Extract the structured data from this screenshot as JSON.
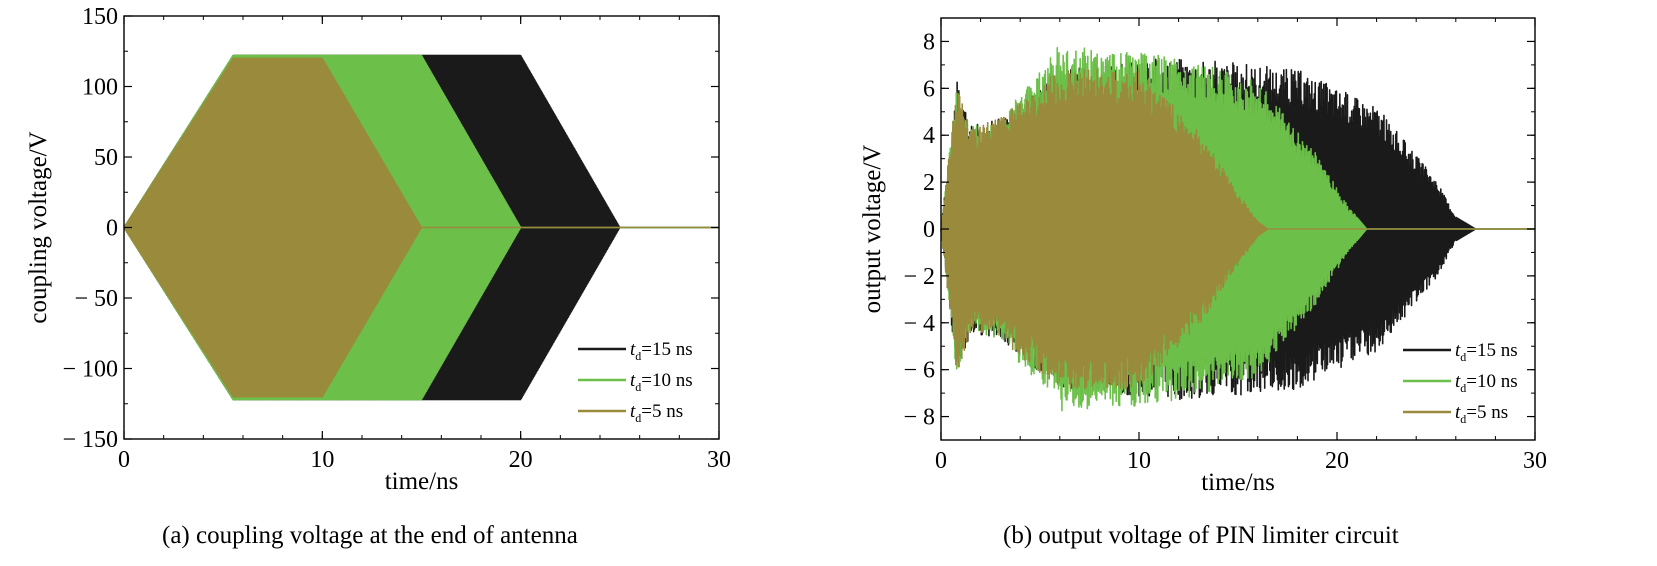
{
  "chart_data": [
    {
      "type": "area",
      "caption": "(a) coupling voltage at the end of antenna",
      "xlabel": "time/ns",
      "ylabel": "coupling voltage/V",
      "xlim": [
        0,
        30
      ],
      "ylim": [
        -150,
        150
      ],
      "xticks": [
        0,
        10,
        20,
        30
      ],
      "yticks": [
        150,
        100,
        50,
        0,
        -50,
        -100,
        -150
      ],
      "ytick_labels": [
        "150",
        "100",
        "50",
        "0",
        "− 50",
        "− 100",
        "− 150"
      ],
      "legend_position": "bottom-right",
      "series": [
        {
          "name": "t_d=15 ns",
          "label_italic": "t",
          "label_sub": "d",
          "label_rest": "=15 ns",
          "color": "#1a1a1a",
          "envelope": {
            "t": [
              0,
              5.5,
              20,
              25,
              30
            ],
            "amplitude": [
              0,
              122,
              122,
              0,
              0
            ]
          }
        },
        {
          "name": "t_d=10 ns",
          "label_italic": "t",
          "label_sub": "d",
          "label_rest": "=10 ns",
          "color": "#6cc04a",
          "envelope": {
            "t": [
              0,
              5.5,
              15,
              20,
              30
            ],
            "amplitude": [
              0,
              122,
              122,
              0,
              0
            ]
          }
        },
        {
          "name": "t_d=5 ns",
          "label_italic": "t",
          "label_sub": "d",
          "label_rest": "=5 ns",
          "color": "#9a8a3c",
          "envelope": {
            "t": [
              0,
              5.5,
              10,
              15,
              30
            ],
            "amplitude": [
              0,
              120,
              120,
              0,
              0
            ]
          }
        }
      ]
    },
    {
      "type": "area",
      "caption": "(b) output voltage of PIN limiter circuit",
      "xlabel": "time/ns",
      "ylabel": "output voltage/V",
      "xlim": [
        0,
        30
      ],
      "ylim": [
        -9,
        9
      ],
      "xticks": [
        0,
        10,
        20,
        30
      ],
      "yticks": [
        8,
        6,
        4,
        2,
        0,
        -2,
        -4,
        -6,
        -8
      ],
      "ytick_labels": [
        "8",
        "6",
        "4",
        "2",
        "0",
        "− 2",
        "− 4",
        "− 6",
        "− 8"
      ],
      "legend_position": "bottom-right",
      "series": [
        {
          "name": "t_d=15 ns",
          "label_italic": "t",
          "label_sub": "d",
          "label_rest": "=15 ns",
          "color": "#1a1a1a",
          "envelope": {
            "t": [
              0,
              0.8,
              1.5,
              3,
              6,
              12,
              18,
              22,
              25,
              26,
              27,
              30
            ],
            "amplitude": [
              0,
              6,
              4.2,
              4.5,
              6.5,
              7,
              6.5,
              5,
              2,
              0.5,
              0,
              0
            ]
          }
        },
        {
          "name": "t_d=10 ns",
          "label_italic": "t",
          "label_sub": "d",
          "label_rest": "=10 ns",
          "color": "#6cc04a",
          "envelope": {
            "t": [
              0,
              0.8,
              1.5,
              3,
              6,
              12,
              16,
              19,
              20.5,
              21.5,
              30
            ],
            "amplitude": [
              0,
              6,
              4.2,
              4.5,
              7.5,
              7,
              6,
              3,
              1,
              0,
              0
            ]
          }
        },
        {
          "name": "t_d=5 ns",
          "label_italic": "t",
          "label_sub": "d",
          "label_rest": "=5 ns",
          "color": "#9a8a3c",
          "envelope": {
            "t": [
              0,
              0.8,
              1.5,
              3,
              6,
              10,
              13,
              15,
              16,
              16.5,
              30
            ],
            "amplitude": [
              0,
              6,
              4.2,
              4.5,
              6.5,
              6.5,
              4,
              1.5,
              0.3,
              0,
              0
            ]
          }
        }
      ]
    }
  ]
}
